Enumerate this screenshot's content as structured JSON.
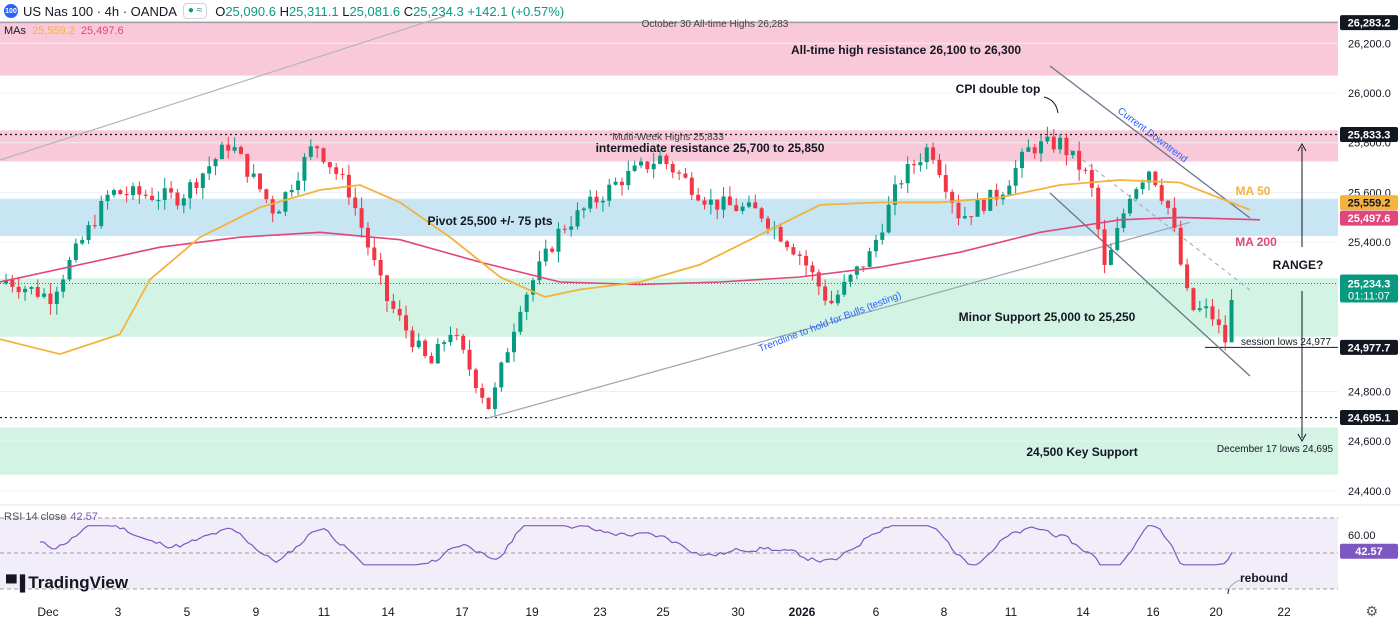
{
  "header": {
    "symbol": "US Nas 100 · 4h · OANDA",
    "logo_text": "100",
    "open_label": "O",
    "open": "25,090.6",
    "high_label": "H",
    "high": "25,311.1",
    "low_label": "L",
    "low": "25,081.6",
    "close_label": "C",
    "close": "25,234.3",
    "change": "+142.1 (+0.57%)"
  },
  "ma_legend": {
    "label": "MAs",
    "ma50": "25,559.2",
    "ma200": "25,497.6"
  },
  "rsi_legend": {
    "label": "RSI 14 close",
    "value": "42.57"
  },
  "brand": "TradingView",
  "colors": {
    "up": "#089981",
    "down": "#f23645",
    "ma50": "#f3b33d",
    "ma200": "#e0457b",
    "rsi": "#7e57c2",
    "resistance": "#f8bbd0",
    "pivot": "#b9def0",
    "support": "#c8f0dd",
    "annotation_blue": "#2962ff"
  },
  "chart_data": {
    "type": "candlestick",
    "y_ticks": [
      "26,200.0",
      "26,000.0",
      "25,800.0",
      "25,600.0",
      "25,400.0",
      "24,800.0",
      "24,600.0",
      "24,400.0"
    ],
    "x_ticks": [
      "Dec",
      "3",
      "5",
      "9",
      "11",
      "14",
      "17",
      "19",
      "23",
      "25",
      "30",
      "2026",
      "6",
      "8",
      "11",
      "14",
      "16",
      "20",
      "22"
    ],
    "rsi_ticks": [
      "60.00"
    ],
    "price_tags": {
      "ath": "26,283.2",
      "mw_high": "25,833.3",
      "ma50": "25,559.2",
      "ma200": "25,497.6",
      "last": "25,234.3",
      "countdown": "01:11:07",
      "session_low": "24,977.7",
      "dec17_low": "24,695.1",
      "rsi": "42.57"
    },
    "zones": [
      {
        "name": "All-time high resistance",
        "from": 26070,
        "to": 26290,
        "label": "All-time high resistance 26,100 to 26,300"
      },
      {
        "name": "Intermediate resistance",
        "from": 25725,
        "to": 25850,
        "label": "intermediate resistance 25,700 to 25,850"
      },
      {
        "name": "Pivot",
        "from": 25425,
        "to": 25575,
        "label": "Pivot 25,500 +/- 75 pts"
      },
      {
        "name": "Minor support",
        "from": 25020,
        "to": 25255,
        "label": "Minor support 25,000 to 25,250"
      },
      {
        "name": "Key support",
        "from": 24465,
        "to": 24655,
        "label": "24,500 Key Support"
      }
    ],
    "annotations": {
      "ath_line": "October 30 All-time Highs 26,283",
      "mw_line": "Multi-Week Highs 25,833",
      "cpi": "CPI double top",
      "downtrend": "Current Downtrend",
      "trendline": "Trendline to hold for Bulls (testing)",
      "minor_support": "Minor Support 25,000 to 25,250",
      "session_lows": "session lows 24,977",
      "dec17": "December 17 lows 24,695",
      "range": "RANGE?",
      "ma50": "MA 50",
      "ma200": "MA 200",
      "rebound": "rebound"
    },
    "ohlc_last": {
      "open": 25090.6,
      "high": 25311.1,
      "low": 25081.6,
      "close": 25234.3
    },
    "ma50_last": 25559.2,
    "ma200_last": 25497.6,
    "rsi_last": 42.57
  }
}
